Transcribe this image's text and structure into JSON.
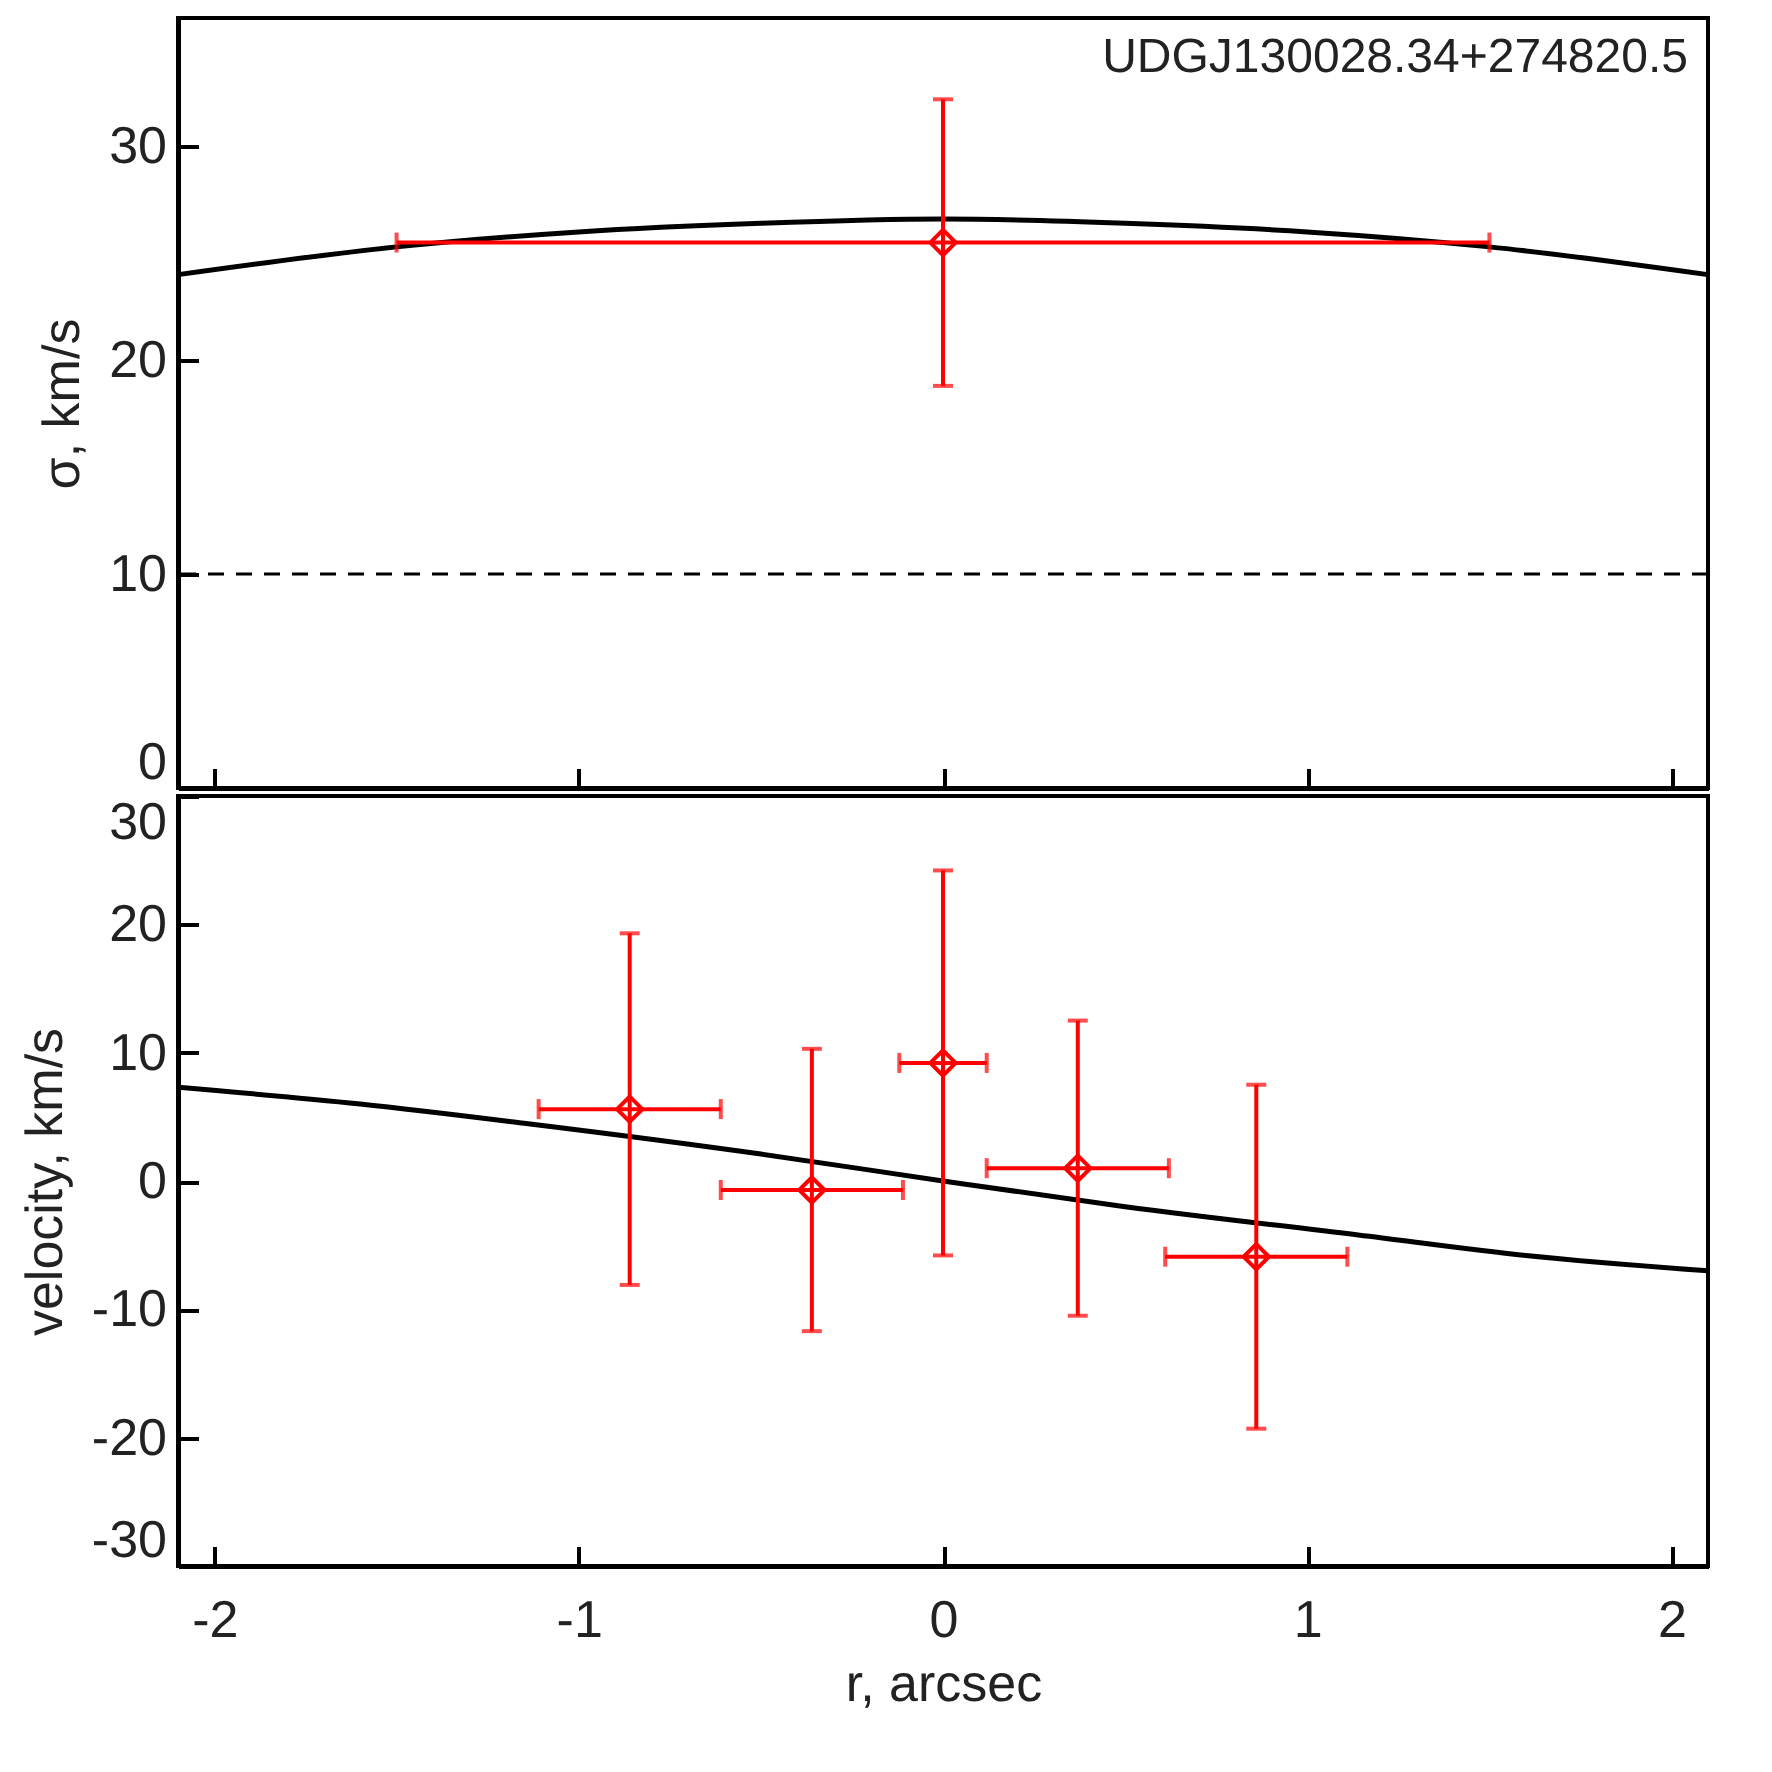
{
  "chart_data": [
    {
      "type": "scatter",
      "ylabel": "σ, km/s",
      "annotations": [
        "UDGJ130028.34+274820.5"
      ],
      "xlim": [
        -2.1,
        2.1
      ],
      "xticks": [
        -2,
        -1,
        0,
        1,
        2
      ],
      "ylim": [
        0,
        36
      ],
      "yticks": [
        0,
        10,
        20,
        30
      ],
      "tick_labels": "y",
      "ref_lines": [
        {
          "axis": "y",
          "value": 10,
          "color": "#000000",
          "line_style": "dashed"
        }
      ],
      "series": [
        {
          "type": "line",
          "color": "#000000",
          "x": [
            -2.1,
            -1.5,
            -1,
            -0.5,
            0,
            0.5,
            1,
            1.5,
            2.1
          ],
          "values": [
            24.0,
            25.3,
            26.0,
            26.4,
            26.6,
            26.4,
            26.0,
            25.3,
            24.0
          ]
        },
        {
          "color": "#ff0000",
          "marker": "diamond",
          "x": [
            0
          ],
          "values": [
            25.5
          ],
          "errors": [
            6.7
          ],
          "xerrors": [
            1.5
          ]
        }
      ]
    },
    {
      "type": "scatter",
      "xlabel": "r, arcsec",
      "ylabel": "velocity, km/s",
      "xlim": [
        -2.1,
        2.1
      ],
      "xticks": [
        -2,
        -1,
        0,
        1,
        2
      ],
      "ylim": [
        -30,
        30
      ],
      "yticks": [
        -30,
        -20,
        -10,
        0,
        10,
        20,
        30
      ],
      "series": [
        {
          "type": "line",
          "color": "#000000",
          "x": [
            -2.1,
            -1.6,
            -1.15,
            -0.5,
            0,
            0.5,
            1.14,
            1.6,
            2.1
          ],
          "values": [
            7.3,
            6.0,
            4.5,
            2.1,
            0,
            -2.0,
            -4.2,
            -5.8,
            -7.0
          ]
        },
        {
          "color": "#ff0000",
          "marker": "diamond",
          "x": [
            -0.86,
            -0.36,
            0,
            0.37,
            0.86
          ],
          "values": [
            5.6,
            -0.7,
            9.2,
            1.0,
            -5.9
          ],
          "errors": [
            13.7,
            11,
            15,
            11.5,
            13.4
          ],
          "xerrors": [
            0.25,
            0.25,
            0.12,
            0.25,
            0.25
          ]
        }
      ]
    }
  ]
}
